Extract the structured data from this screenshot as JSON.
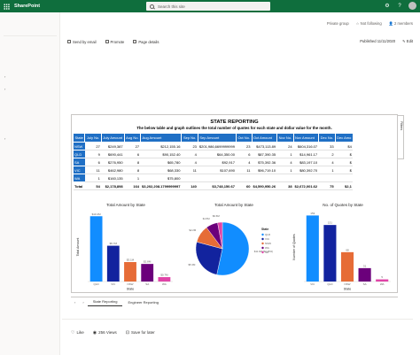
{
  "suite": {
    "brand": "SharePoint",
    "search_placeholder": "Search this site",
    "icons": [
      "settings-icon",
      "help-icon",
      "avatar"
    ]
  },
  "site": {
    "privacy": "Private group",
    "follow": "Not following",
    "members": "2 members"
  },
  "commandbar": {
    "send": "Send by email",
    "promote": "Promote",
    "details": "Page details",
    "published": "Published 11/11/2020",
    "edit": "Edit"
  },
  "report": {
    "title": "STATE REPORTING",
    "subtitle": "The below table and graph outlines the total number of quotes for each state and dollar value for the month.",
    "filters_label": "Filters",
    "columns": [
      "State",
      "July No.",
      "July Amount",
      "Aug No.",
      "Aug Amount",
      "Sep No.",
      "Sep Amount",
      "Oct No.",
      "Oct Amount",
      "Nov No.",
      "Nov Amount",
      "Dec No.",
      "Dec Amo"
    ],
    "rows": [
      [
        "NSW",
        "27",
        "$249,387",
        "27",
        "$212,155.16",
        "23",
        "$201,986,6699999999",
        "23",
        "$473,113.89",
        "24",
        "$604,316.07",
        "33",
        "$4"
      ],
      [
        "QLD",
        "9",
        "$690,441",
        "6",
        "$90,152.40",
        "4",
        "$64,350.00",
        "6",
        "$87,390.35",
        "1",
        "$14,961.17",
        "2",
        "$"
      ],
      [
        "SA",
        "6",
        "$276,950",
        "8",
        "$65,780",
        "4",
        "$92,917",
        "4",
        "$75,392.36",
        "4",
        "$83,197.10",
        "4",
        "$"
      ],
      [
        "VIC",
        "11",
        "$462,980",
        "8",
        "$68,330",
        "11",
        "$107,690",
        "11",
        "$96,719.10",
        "1",
        "$80,392.70",
        "1",
        "$"
      ],
      [
        "WA",
        "1",
        "$160,135",
        "1",
        "$75,800",
        "",
        "",
        "",
        "",
        "",
        "",
        "",
        ""
      ]
    ],
    "total": [
      "Total",
      "54",
      "$2,178,898",
      "164",
      "$3,202,208.1799999997",
      "140",
      "$3,748,150.67",
      "60",
      "$4,590,950.26",
      "38",
      "$2,672,001.62",
      "75",
      "$2,1"
    ]
  },
  "charts": [
    {
      "chart_data": {
        "type": "bar",
        "title": "Total Amount by State",
        "xlabel": "State",
        "ylabel": "Total Amount",
        "categories": [
          "QLD",
          "VIC",
          "NSW",
          "SA",
          "WA"
        ],
        "values": [
          10.4,
          5.7,
          3.1,
          2.8,
          0.7
        ],
        "data_labels": [
          "$10.4M",
          "$5.7M",
          "$3.1M",
          "$2.8M",
          "$0.7M"
        ],
        "colors": [
          "#118dff",
          "#12239e",
          "#e66c37",
          "#6b007b",
          "#e044a7"
        ]
      }
    },
    {
      "chart_data": {
        "type": "pie",
        "title": "Total Amount by State",
        "legend_title": "State",
        "legend": [
          "QLD",
          "VIC",
          "NSW",
          "WA",
          "SA"
        ],
        "values": [
          11.0,
          5.3,
          2.2,
          1.5,
          0.6
        ],
        "data_labels": [
          "$11.0M (53.46%)",
          "$5.3M",
          "$2.2M",
          "$1.5M",
          "$0.6M"
        ],
        "colors": [
          "#118dff",
          "#12239e",
          "#e66c37",
          "#6b007b",
          "#e044a7"
        ]
      }
    },
    {
      "chart_data": {
        "type": "bar",
        "title": "No. of Quotes by State",
        "xlabel": "State",
        "ylabel": "Number of Quotes",
        "categories": [
          "VIC",
          "QLD",
          "NSW",
          "SA",
          "WA"
        ],
        "values": [
          153,
          131,
          68,
          31,
          5
        ],
        "data_labels": [
          "153",
          "131",
          "68",
          "31",
          "5"
        ],
        "colors": [
          "#118dff",
          "#12239e",
          "#e66c37",
          "#6b007b",
          "#e044a7"
        ]
      }
    }
  ],
  "tabs": [
    "State Reporting",
    "Engineer Reporting"
  ],
  "footer": {
    "like": "Like",
    "views": "256 Views",
    "save": "Save for later"
  }
}
